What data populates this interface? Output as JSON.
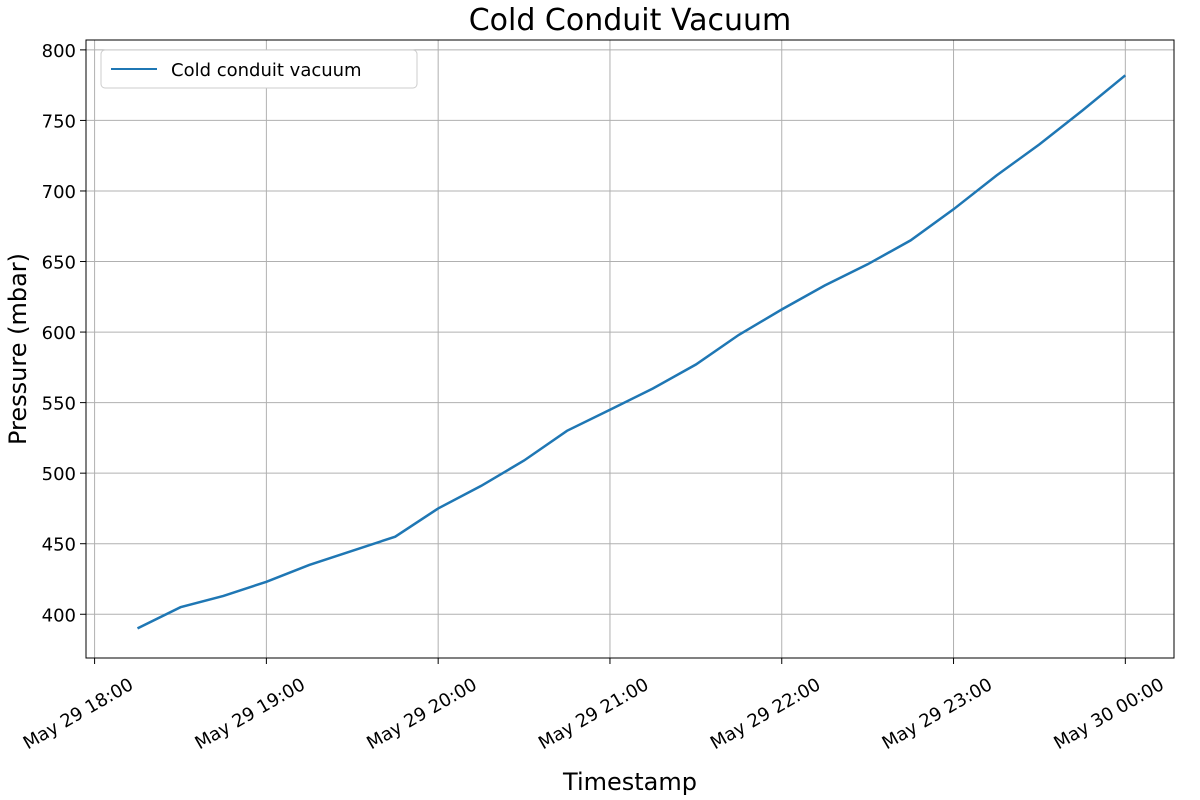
{
  "chart_data": {
    "type": "line",
    "title": "Cold Conduit Vacuum",
    "x_label": "Timestamp",
    "y_label": "Pressure (mbar)",
    "x": [
      "May 29 18:15",
      "May 29 18:30",
      "May 29 18:45",
      "May 29 19:00",
      "May 29 19:15",
      "May 29 19:30",
      "May 29 19:45",
      "May 29 20:00",
      "May 29 20:15",
      "May 29 20:30",
      "May 29 20:45",
      "May 29 21:00",
      "May 29 21:15",
      "May 29 21:30",
      "May 29 21:45",
      "May 29 22:00",
      "May 29 22:15",
      "May 29 22:30",
      "May 29 22:45",
      "May 29 23:00",
      "May 29 23:15",
      "May 29 23:30",
      "May 29 23:45",
      "May 30 00:00"
    ],
    "series": [
      {
        "name": "Cold conduit vacuum",
        "color": "#1f77b4",
        "values": [
          390,
          405,
          413,
          423,
          435,
          445,
          455,
          475,
          491,
          509,
          530,
          545,
          560,
          577,
          598,
          616,
          633,
          648,
          665,
          687,
          711,
          733,
          757,
          782
        ]
      }
    ],
    "xlim": [
      "May 29 17:57",
      "May 30 00:17"
    ],
    "xticks": [
      "May 29 18:00",
      "May 29 19:00",
      "May 29 20:00",
      "May 29 21:00",
      "May 29 22:00",
      "May 29 23:00",
      "May 30 00:00"
    ],
    "ylim": [
      369,
      807
    ],
    "yticks": [
      400,
      450,
      500,
      550,
      600,
      650,
      700,
      750,
      800
    ],
    "grid": true,
    "legend": "upper-left"
  }
}
